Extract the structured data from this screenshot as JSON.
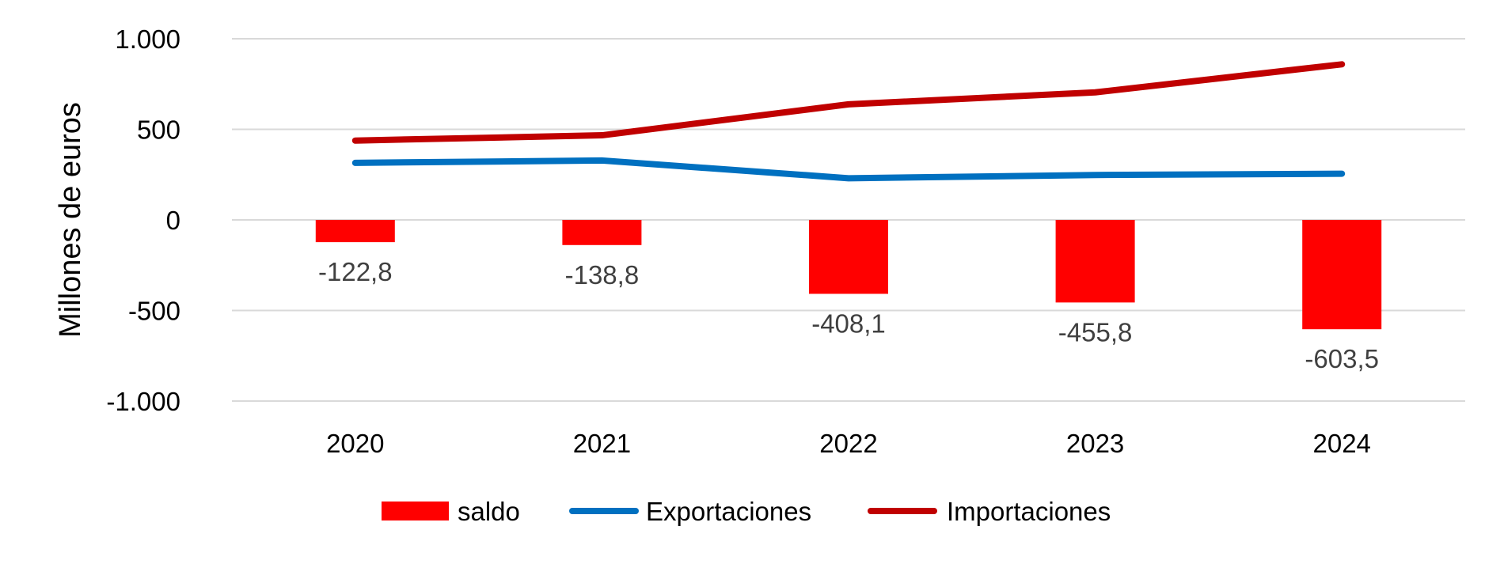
{
  "chart_data": {
    "type": "bar+line",
    "title": "",
    "xlabel": "",
    "ylabel": "Millones de euros",
    "categories": [
      "2020",
      "2021",
      "2022",
      "2023",
      "2024"
    ],
    "ylim": [
      -1000,
      1000
    ],
    "yticks": [
      1000,
      500,
      0,
      -500,
      -1000
    ],
    "ytick_labels": [
      "1.000",
      "500",
      "0",
      "-500",
      "-1.000"
    ],
    "grid": true,
    "legend_position": "bottom",
    "series": [
      {
        "name": "saldo",
        "kind": "bar",
        "color": "#FF0000",
        "values": [
          -122.8,
          -138.8,
          -408.1,
          -455.8,
          -603.5
        ],
        "labels": [
          "-122,8",
          "-138,8",
          "-408,1",
          "-455,8",
          "-603,5"
        ]
      },
      {
        "name": "Exportaciones",
        "kind": "line",
        "color": "#0070C0",
        "values": [
          315,
          328,
          230,
          248,
          255
        ]
      },
      {
        "name": "Importaciones",
        "kind": "line",
        "color": "#C00000",
        "values": [
          438,
          467,
          638,
          704,
          859
        ]
      }
    ]
  }
}
